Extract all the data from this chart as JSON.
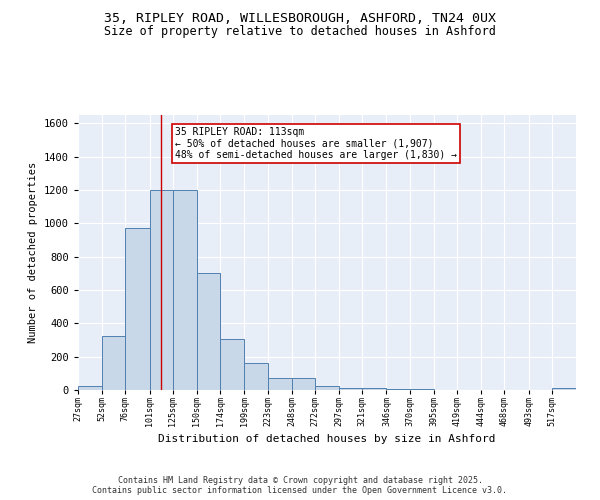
{
  "title1": "35, RIPLEY ROAD, WILLESBOROUGH, ASHFORD, TN24 0UX",
  "title2": "Size of property relative to detached houses in Ashford",
  "xlabel": "Distribution of detached houses by size in Ashford",
  "ylabel": "Number of detached properties",
  "bin_edges": [
    27,
    52,
    76,
    101,
    125,
    150,
    174,
    199,
    223,
    248,
    272,
    297,
    321,
    346,
    370,
    395,
    419,
    444,
    468,
    493,
    517,
    542
  ],
  "bar_heights": [
    25,
    325,
    975,
    1200,
    1200,
    700,
    305,
    160,
    75,
    75,
    25,
    15,
    10,
    5,
    5,
    2,
    2,
    2,
    2,
    2,
    10
  ],
  "bar_color": "#c8d8e8",
  "bar_edge_color": "#5080b0",
  "red_line_x": 113,
  "red_line_color": "#cc0000",
  "annotation_text": "35 RIPLEY ROAD: 113sqm\n← 50% of detached houses are smaller (1,907)\n48% of semi-detached houses are larger (1,830) →",
  "annotation_box_color": "#ffffff",
  "annotation_box_edge_color": "#cc0000",
  "ylim": [
    0,
    1650
  ],
  "yticks": [
    0,
    200,
    400,
    600,
    800,
    1000,
    1200,
    1400,
    1600
  ],
  "background_color": "#e8eef8",
  "grid_color": "#ffffff",
  "fig_background": "#ffffff",
  "footer1": "Contains HM Land Registry data © Crown copyright and database right 2025.",
  "footer2": "Contains public sector information licensed under the Open Government Licence v3.0."
}
